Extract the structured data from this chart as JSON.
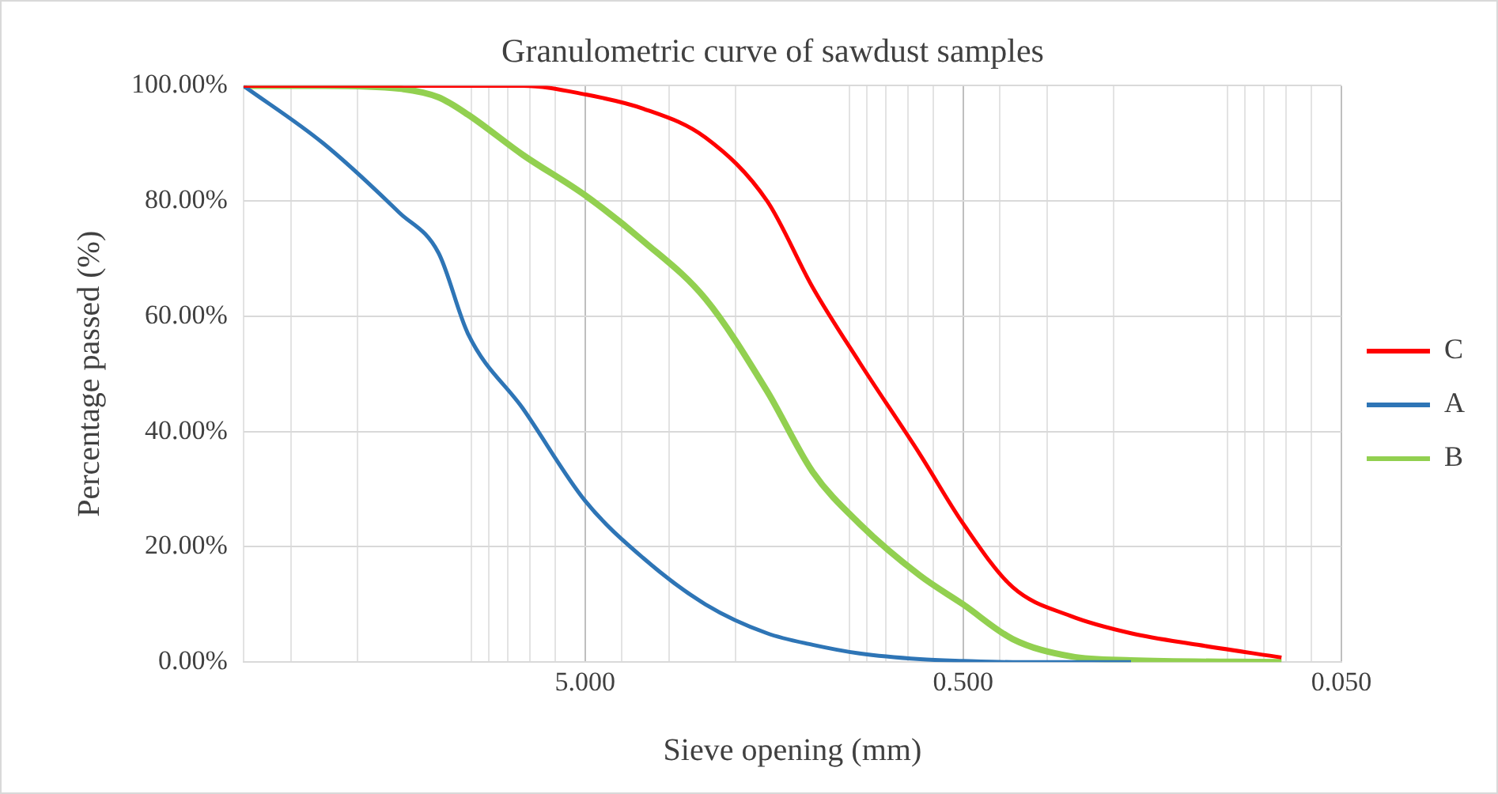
{
  "chart_data": {
    "type": "line",
    "title": "Granulometric curve of sawdust samples",
    "xlabel": "Sieve opening (mm)",
    "ylabel": "Percentage passed (%)",
    "log": "x",
    "xlim": [
      40,
      0.05
    ],
    "xticks": [
      {
        "value": 40,
        "label": null
      },
      {
        "value": 30,
        "label": null
      },
      {
        "value": 20,
        "label": null
      },
      {
        "value": 10,
        "label": null
      },
      {
        "value": 9,
        "label": null
      },
      {
        "value": 8,
        "label": null
      },
      {
        "value": 7,
        "label": null
      },
      {
        "value": 6,
        "label": null
      },
      {
        "value": 5,
        "label": "5.000"
      },
      {
        "value": 4,
        "label": null
      },
      {
        "value": 3,
        "label": null
      },
      {
        "value": 2,
        "label": null
      },
      {
        "value": 1,
        "label": null
      },
      {
        "value": 0.9,
        "label": null
      },
      {
        "value": 0.8,
        "label": null
      },
      {
        "value": 0.7,
        "label": null
      },
      {
        "value": 0.6,
        "label": null
      },
      {
        "value": 0.5,
        "label": "0.500"
      },
      {
        "value": 0.4,
        "label": null
      },
      {
        "value": 0.3,
        "label": null
      },
      {
        "value": 0.2,
        "label": null
      },
      {
        "value": 0.1,
        "label": null
      },
      {
        "value": 0.09,
        "label": null
      },
      {
        "value": 0.08,
        "label": null
      },
      {
        "value": 0.07,
        "label": null
      },
      {
        "value": 0.06,
        "label": null
      },
      {
        "value": 0.05,
        "label": "0.050"
      }
    ],
    "ylim": [
      0,
      100
    ],
    "yticks": [
      {
        "value": 0,
        "label": "0.00%"
      },
      {
        "value": 20,
        "label": "20.00%"
      },
      {
        "value": 40,
        "label": "40.00%"
      },
      {
        "value": 60,
        "label": "60.00%"
      },
      {
        "value": 80,
        "label": "80.00%"
      },
      {
        "value": 100,
        "label": "100.00%"
      }
    ],
    "grid": true,
    "legend": "right",
    "marker": "none",
    "line_style": "solid",
    "series": [
      {
        "name": "C",
        "color": "#ff0000",
        "x": [
          40,
          24.6,
          15.5,
          12.2,
          10.2,
          7.3,
          5,
          3.5,
          2.4,
          1.65,
          1.25,
          0.94,
          0.65,
          0.5,
          0.37,
          0.26,
          0.18,
          0.12,
          0.072
        ],
        "values": [
          100,
          100,
          100,
          100,
          100,
          100,
          98.5,
          96,
          91,
          80,
          65,
          52,
          36,
          24,
          13,
          8,
          5,
          3,
          0.8
        ]
      },
      {
        "name": "A",
        "color": "#2e75b6",
        "x": [
          40,
          24.6,
          15.5,
          12.2,
          10.2,
          7.3,
          5,
          3.5,
          2.4,
          1.65,
          1.25,
          0.94,
          0.65,
          0.5,
          0.37,
          0.26,
          0.18
        ],
        "values": [
          100,
          90,
          78,
          71,
          57,
          44,
          28,
          18,
          10,
          5,
          3,
          1.5,
          0.5,
          0.2,
          0,
          0,
          0
        ]
      },
      {
        "name": "B",
        "color": "#92d050",
        "x": [
          40,
          24.6,
          15.5,
          12.2,
          10.2,
          7.3,
          5,
          3.5,
          2.4,
          1.65,
          1.25,
          0.94,
          0.65,
          0.5,
          0.37,
          0.26,
          0.18,
          0.072
        ],
        "values": [
          100,
          100,
          99.5,
          98,
          95,
          88,
          81,
          73,
          63,
          47,
          33,
          24,
          15,
          10,
          4,
          1,
          0.3,
          0
        ]
      }
    ]
  }
}
